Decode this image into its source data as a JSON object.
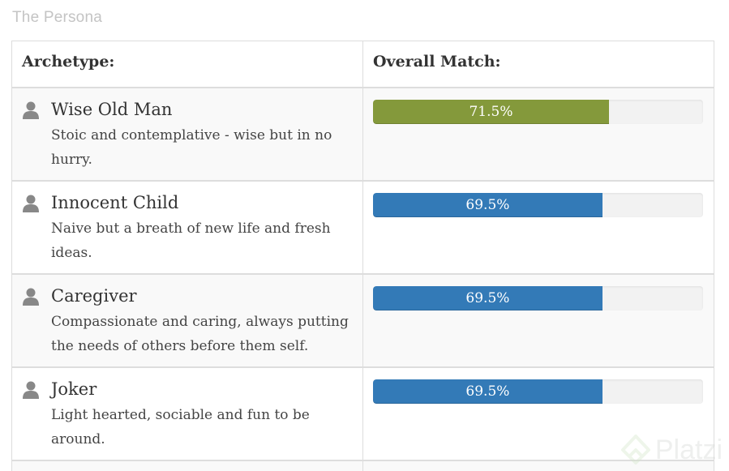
{
  "page": {
    "title": "The Persona"
  },
  "table": {
    "headers": {
      "archetype": "Archetype:",
      "overall_match": "Overall Match:"
    },
    "rows": [
      {
        "icon": "user-icon",
        "name": "Wise Old Man",
        "description": "Stoic and contemplative - wise but in no hurry.",
        "match_label": "71.5%",
        "match_value": 71.5,
        "bar_color": "#84993b"
      },
      {
        "icon": "user-icon",
        "name": "Innocent Child",
        "description": "Naive but a breath of new life and fresh ideas.",
        "match_label": "69.5%",
        "match_value": 69.5,
        "bar_color": "#337ab7"
      },
      {
        "icon": "user-icon",
        "name": "Caregiver",
        "description": "Compassionate and caring, always putting the needs of others before them self.",
        "match_label": "69.5%",
        "match_value": 69.5,
        "bar_color": "#337ab7"
      },
      {
        "icon": "user-icon",
        "name": "Joker",
        "description": "Light hearted, sociable and fun to be around.",
        "match_label": "69.5%",
        "match_value": 69.5,
        "bar_color": "#337ab7"
      }
    ]
  },
  "watermark": {
    "text": "Platzi",
    "icon": "platzi-logo-icon"
  }
}
